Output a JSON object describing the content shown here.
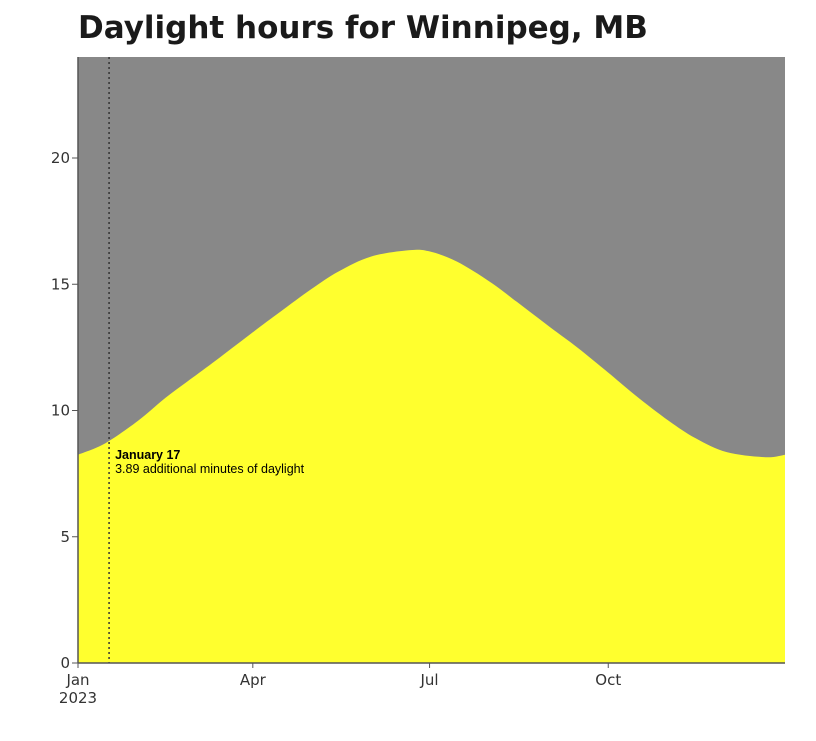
{
  "chart_data": {
    "type": "area",
    "title": "Daylight hours for Winnipeg, MB",
    "xlabel": "",
    "ylabel": "",
    "ylim": [
      0,
      24
    ],
    "xlim": [
      "2023-01-01",
      "2023-12-31"
    ],
    "y_ticks": [
      "0",
      "5",
      "10",
      "15",
      "20"
    ],
    "x_ticks": [
      {
        "date": "2023-01-01",
        "label": "Jan",
        "sublabel": "2023"
      },
      {
        "date": "2023-04-01",
        "label": "Apr"
      },
      {
        "date": "2023-07-01",
        "label": "Jul"
      },
      {
        "date": "2023-10-01",
        "label": "Oct"
      }
    ],
    "series": [
      {
        "values": [
          {
            "x": "2023-01-01",
            "y": 8.25
          },
          {
            "x": "2023-01-15",
            "y": 8.7
          },
          {
            "x": "2023-02-01",
            "y": 9.6
          },
          {
            "x": "2023-02-15",
            "y": 10.5
          },
          {
            "x": "2023-03-01",
            "y": 11.3
          },
          {
            "x": "2023-03-15",
            "y": 12.1
          },
          {
            "x": "2023-04-01",
            "y": 13.1
          },
          {
            "x": "2023-04-15",
            "y": 13.9
          },
          {
            "x": "2023-05-01",
            "y": 14.8
          },
          {
            "x": "2023-05-15",
            "y": 15.5
          },
          {
            "x": "2023-06-01",
            "y": 16.1
          },
          {
            "x": "2023-06-21",
            "y": 16.35
          },
          {
            "x": "2023-07-01",
            "y": 16.3
          },
          {
            "x": "2023-07-15",
            "y": 15.9
          },
          {
            "x": "2023-08-01",
            "y": 15.1
          },
          {
            "x": "2023-08-15",
            "y": 14.3
          },
          {
            "x": "2023-09-01",
            "y": 13.3
          },
          {
            "x": "2023-09-15",
            "y": 12.5
          },
          {
            "x": "2023-10-01",
            "y": 11.5
          },
          {
            "x": "2023-10-15",
            "y": 10.6
          },
          {
            "x": "2023-11-01",
            "y": 9.6
          },
          {
            "x": "2023-11-15",
            "y": 8.9
          },
          {
            "x": "2023-12-01",
            "y": 8.35
          },
          {
            "x": "2023-12-21",
            "y": 8.15
          },
          {
            "x": "2023-12-31",
            "y": 8.25
          }
        ]
      }
    ],
    "marker": {
      "date": "2023-01-17",
      "title": "January 17",
      "text": "3.89 additional minutes of daylight"
    },
    "grid": false,
    "colors": {
      "daylight": "#ffff2e",
      "night": "#888888",
      "axis": "#555555"
    }
  }
}
